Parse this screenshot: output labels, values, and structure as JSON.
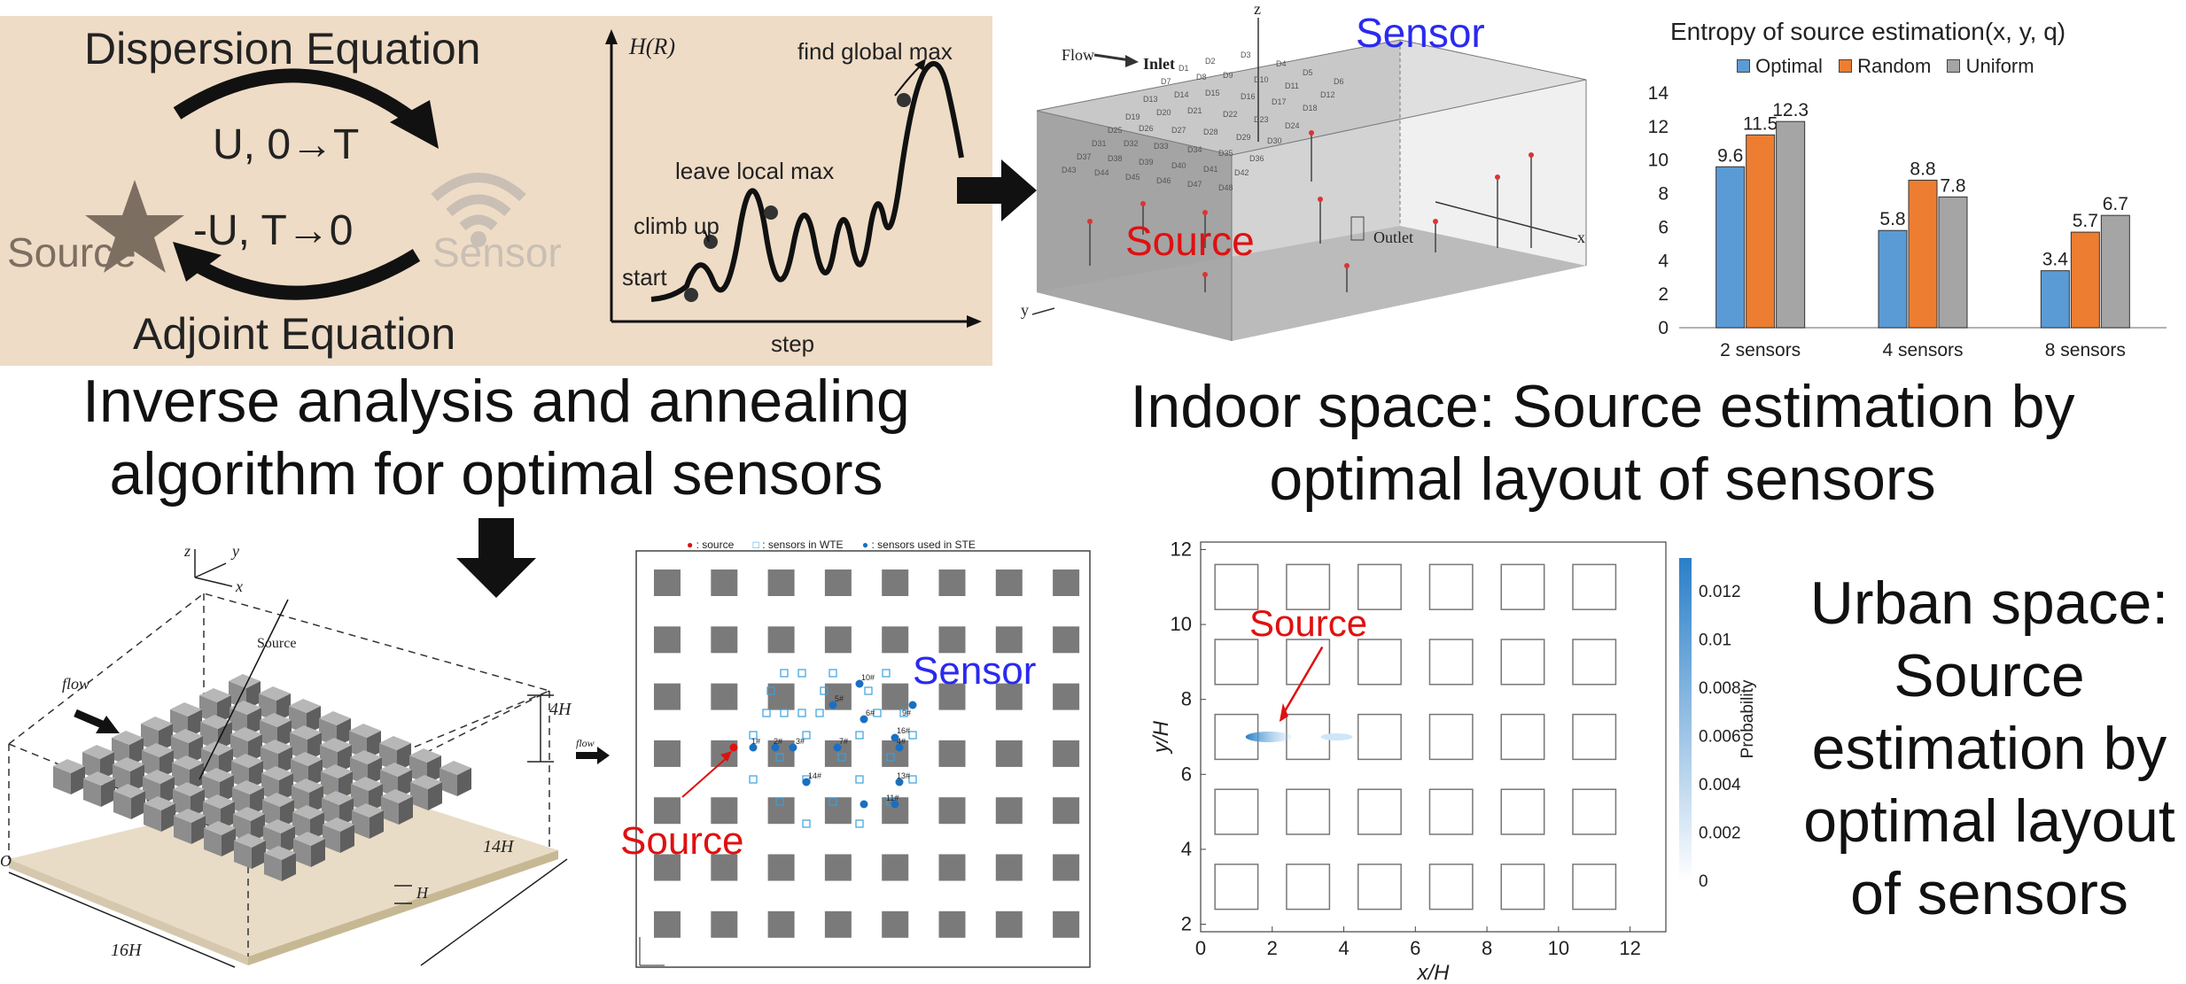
{
  "panel1": {
    "top_label": "Dispersion Equation",
    "bottom_label": "Adjoint Equation",
    "forward": "U, 0→T",
    "backward": "-U, T→0",
    "source": "Source",
    "sensor": "Sensor"
  },
  "panel2": {
    "yaxis": "H(R)",
    "xaxis": "step",
    "annotations": [
      "find global max",
      "leave local max",
      "climb up",
      "start"
    ]
  },
  "caption_left": [
    "Inverse analysis and annealing",
    "algorithm for optimal sensors"
  ],
  "indoor": {
    "flow": "Flow",
    "inlet": "Inlet",
    "outlet": "Outlet",
    "source": "Source",
    "sensor": "Sensor",
    "axis_z": "z",
    "axis_x": "x",
    "axis_y": "y"
  },
  "caption_indoor": [
    "Indoor space: Source estimation by",
    "optimal layout of sensors"
  ],
  "chart_data": {
    "type": "bar",
    "title": "Entropy of source estimation(x, y, q)",
    "categories": [
      "2 sensors",
      "4 sensors",
      "8 sensors"
    ],
    "series": [
      {
        "name": "Optimal",
        "values": [
          9.6,
          5.8,
          3.4
        ],
        "color": "#5B9BD5"
      },
      {
        "name": "Random",
        "values": [
          11.5,
          8.8,
          5.7
        ],
        "color": "#ED7D31"
      },
      {
        "name": "Uniform",
        "values": [
          12.3,
          7.8,
          6.7
        ],
        "color": "#A5A5A5"
      }
    ],
    "ylim": [
      0,
      14
    ],
    "yticks": [
      0,
      2,
      4,
      6,
      8,
      10,
      12,
      14
    ],
    "legend": "top",
    "grid": false
  },
  "urban3d": {
    "source": "Source",
    "flow": "flow",
    "dim_height": "4H",
    "dim_width": "14H",
    "dim_length": "16H",
    "dim_unit": "H",
    "axes": {
      "x": "x",
      "y": "y",
      "z": "z",
      "origin": "O"
    }
  },
  "urbanplan": {
    "legend_source": "● : source",
    "legend_wte": "□ : sensors in WTE",
    "legend_ste": "● : sensors used in STE",
    "flow": "flow",
    "source": "Source",
    "sensor": "Sensor",
    "sensor_ids": [
      "10#",
      "5#",
      "6#",
      "9#",
      "16#",
      "1#",
      "2#",
      "3#",
      "7#",
      "4#",
      "14#",
      "11#",
      "13#"
    ]
  },
  "probmap": {
    "xlabel": "x/H",
    "ylabel": "y/H",
    "xticks": [
      "0",
      "2",
      "4",
      "6",
      "8",
      "10",
      "12"
    ],
    "yticks": [
      "2",
      "4",
      "6",
      "8",
      "10",
      "12"
    ],
    "colorbar_label": "Probability",
    "colorbar_ticks": [
      "0.012",
      "0.01",
      "0.008",
      "0.006",
      "0.004",
      "0.002",
      "0"
    ],
    "source": "Source"
  },
  "caption_urban": [
    "Urban space:",
    "Source",
    "estimation by",
    "optimal layout",
    "of sensors"
  ]
}
